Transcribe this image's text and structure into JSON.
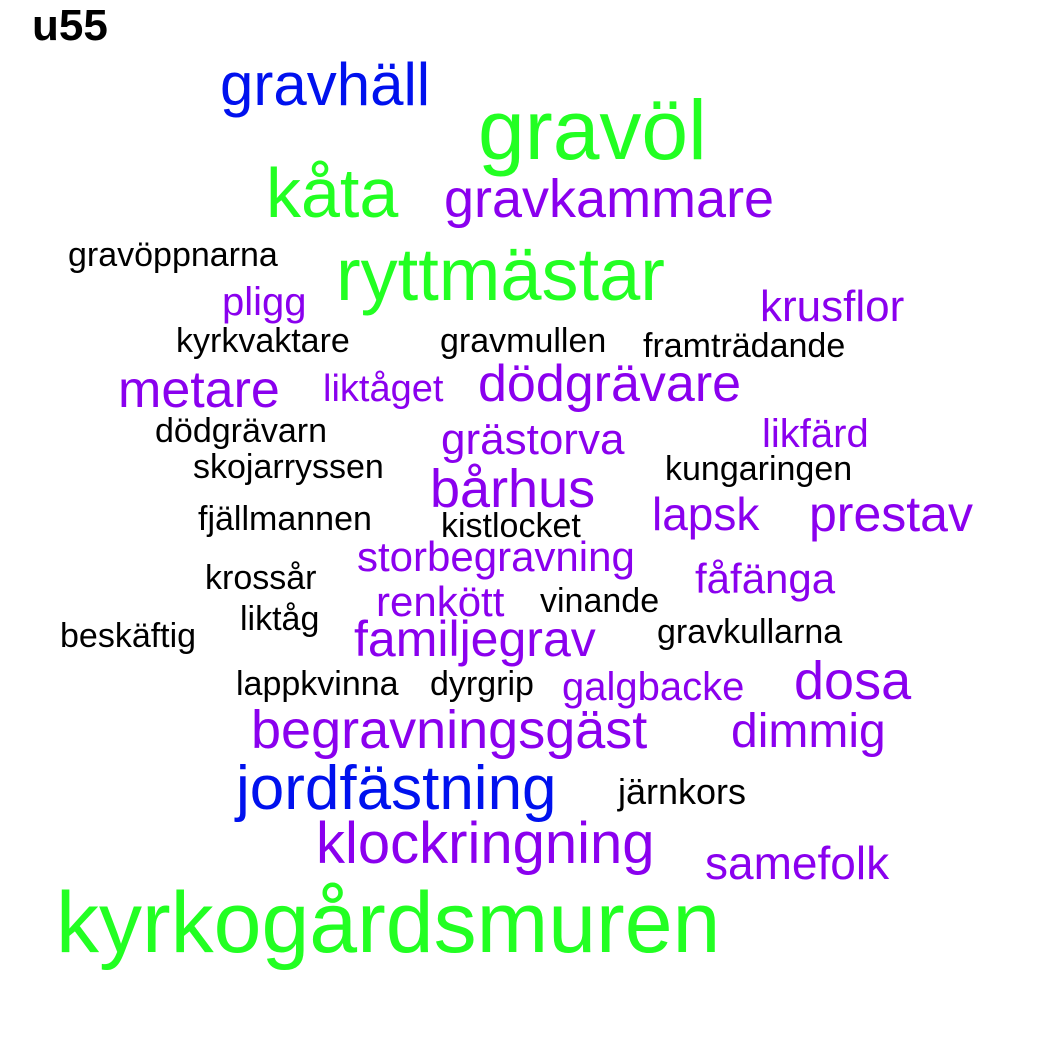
{
  "palette": {
    "green": "#22ff22",
    "blue": "#0011ee",
    "purple": "#8a00ee",
    "black": "#000000"
  },
  "label": "u55",
  "words": [
    {
      "text": "gravhäll",
      "color": "blue"
    },
    {
      "text": "gravöl",
      "color": "green"
    },
    {
      "text": "kåta",
      "color": "green"
    },
    {
      "text": "gravkammare",
      "color": "purple"
    },
    {
      "text": "gravöppnarna",
      "color": "black"
    },
    {
      "text": "ryttmästar",
      "color": "green"
    },
    {
      "text": "pligg",
      "color": "purple"
    },
    {
      "text": "krusflor",
      "color": "purple"
    },
    {
      "text": "kyrkvaktare",
      "color": "black"
    },
    {
      "text": "gravmullen",
      "color": "black"
    },
    {
      "text": "framträdande",
      "color": "black"
    },
    {
      "text": "metare",
      "color": "purple"
    },
    {
      "text": "liktåget",
      "color": "purple"
    },
    {
      "text": "dödgrävare",
      "color": "purple"
    },
    {
      "text": "dödgrävarn",
      "color": "black"
    },
    {
      "text": "grästorva",
      "color": "purple"
    },
    {
      "text": "likfärd",
      "color": "purple"
    },
    {
      "text": "skojarryssen",
      "color": "black"
    },
    {
      "text": "kungaringen",
      "color": "black"
    },
    {
      "text": "bårhus",
      "color": "purple"
    },
    {
      "text": "fjällmannen",
      "color": "black"
    },
    {
      "text": "kistlocket",
      "color": "black"
    },
    {
      "text": "lapsk",
      "color": "purple"
    },
    {
      "text": "prestav",
      "color": "purple"
    },
    {
      "text": "storbegravning",
      "color": "purple"
    },
    {
      "text": "krossår",
      "color": "black"
    },
    {
      "text": "fåfänga",
      "color": "purple"
    },
    {
      "text": "renkött",
      "color": "purple"
    },
    {
      "text": "vinande",
      "color": "black"
    },
    {
      "text": "liktåg",
      "color": "black"
    },
    {
      "text": "beskäftig",
      "color": "black"
    },
    {
      "text": "familjegrav",
      "color": "purple"
    },
    {
      "text": "gravkullarna",
      "color": "black"
    },
    {
      "text": "lappkvinna",
      "color": "black"
    },
    {
      "text": "dyrgrip",
      "color": "black"
    },
    {
      "text": "galgbacke",
      "color": "purple"
    },
    {
      "text": "dosa",
      "color": "purple"
    },
    {
      "text": "begravningsgäst",
      "color": "purple"
    },
    {
      "text": "dimmig",
      "color": "purple"
    },
    {
      "text": "jordfästning",
      "color": "blue"
    },
    {
      "text": "järnkors",
      "color": "black"
    },
    {
      "text": "klockringning",
      "color": "purple"
    },
    {
      "text": "samefolk",
      "color": "purple"
    },
    {
      "text": "kyrkogårdsmuren",
      "color": "green"
    }
  ]
}
